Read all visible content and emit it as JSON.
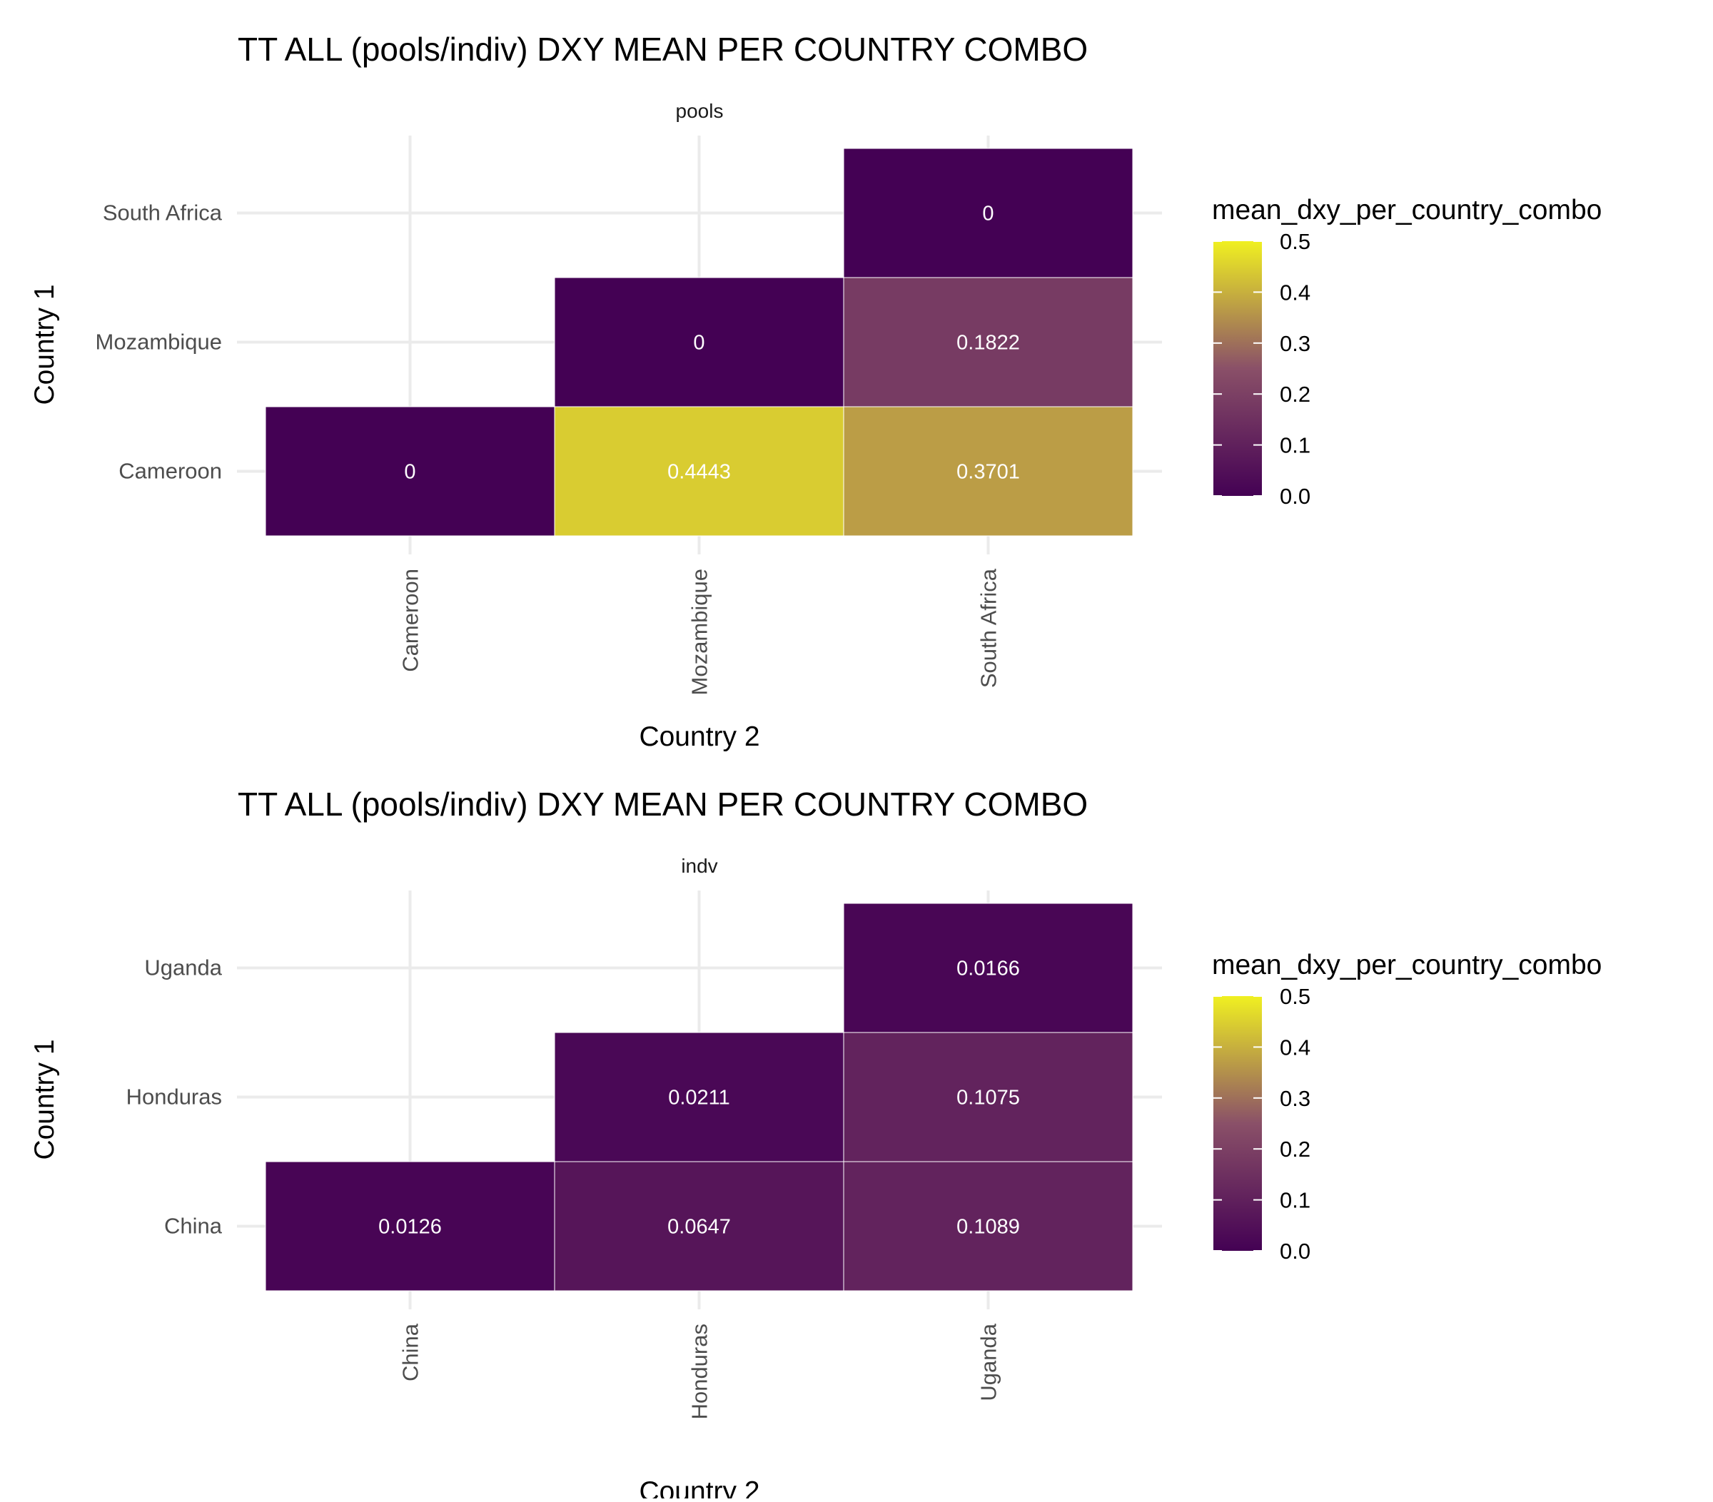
{
  "colors": {
    "low": "#440154",
    "mid": "#8A5068",
    "high": "#F0F021",
    "grid": "#EBEBEB",
    "cell_border": "#FFFFFF",
    "cell_text": "#FFFFFF",
    "axis_text": "#4D4D4D",
    "title_text": "#000000"
  },
  "chart_data": [
    {
      "type": "heatmap",
      "title": "TT ALL (pools/indiv) DXY MEAN PER COUNTRY COMBO",
      "facet_label": "pools",
      "xlabel": "Country 2",
      "ylabel": "Country 1",
      "x_categories": [
        "Cameroon",
        "Mozambique",
        "South Africa"
      ],
      "y_categories": [
        "Cameroon",
        "Mozambique",
        "South Africa"
      ],
      "cells": [
        {
          "x": "Cameroon",
          "y": "Cameroon",
          "value": 0,
          "label": "0"
        },
        {
          "x": "Mozambique",
          "y": "Cameroon",
          "value": 0.4443,
          "label": "0.4443"
        },
        {
          "x": "South Africa",
          "y": "Cameroon",
          "value": 0.3701,
          "label": "0.3701"
        },
        {
          "x": "Mozambique",
          "y": "Mozambique",
          "value": 0,
          "label": "0"
        },
        {
          "x": "South Africa",
          "y": "Mozambique",
          "value": 0.1822,
          "label": "0.1822"
        },
        {
          "x": "South Africa",
          "y": "South Africa",
          "value": 0,
          "label": "0"
        }
      ],
      "legend": {
        "title": "mean_dxy_per_country_combo",
        "limits": [
          0,
          0.5
        ],
        "breaks": [
          0.5,
          0.4,
          0.3,
          0.2,
          0.1,
          0.0
        ],
        "break_labels": [
          "0.5",
          "0.4",
          "0.3",
          "0.2",
          "0.1",
          "0.0"
        ],
        "position": "right"
      },
      "grid": true
    },
    {
      "type": "heatmap",
      "title": "TT ALL (pools/indiv) DXY MEAN PER COUNTRY COMBO",
      "facet_label": "indv",
      "xlabel": "Country 2",
      "ylabel": "Country 1",
      "x_categories": [
        "China",
        "Honduras",
        "Uganda"
      ],
      "y_categories": [
        "China",
        "Honduras",
        "Uganda"
      ],
      "cells": [
        {
          "x": "China",
          "y": "China",
          "value": 0.0126,
          "label": "0.0126"
        },
        {
          "x": "Honduras",
          "y": "China",
          "value": 0.0647,
          "label": "0.0647"
        },
        {
          "x": "Uganda",
          "y": "China",
          "value": 0.1089,
          "label": "0.1089"
        },
        {
          "x": "Honduras",
          "y": "Honduras",
          "value": 0.0211,
          "label": "0.0211"
        },
        {
          "x": "Uganda",
          "y": "Honduras",
          "value": 0.1075,
          "label": "0.1075"
        },
        {
          "x": "Uganda",
          "y": "Uganda",
          "value": 0.0166,
          "label": "0.0166"
        }
      ],
      "legend": {
        "title": "mean_dxy_per_country_combo",
        "limits": [
          0,
          0.5
        ],
        "breaks": [
          0.5,
          0.4,
          0.3,
          0.2,
          0.1,
          0.0
        ],
        "break_labels": [
          "0.5",
          "0.4",
          "0.3",
          "0.2",
          "0.1",
          "0.0"
        ],
        "position": "right"
      },
      "grid": true
    }
  ]
}
